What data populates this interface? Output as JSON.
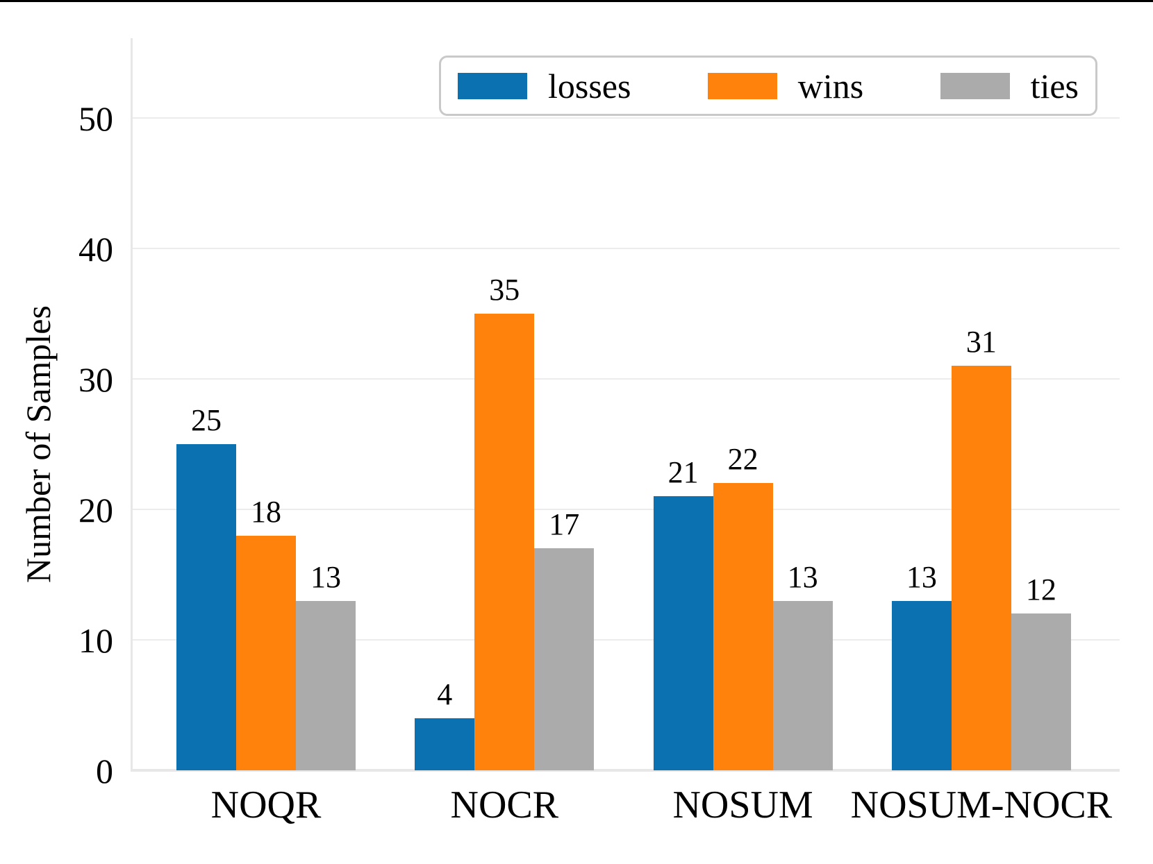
{
  "figure": {
    "background": "#ffffff",
    "top_border_color": "#000000"
  },
  "chart_data": {
    "type": "bar",
    "title": "",
    "xlabel": "",
    "ylabel": "Number of Samples",
    "categories": [
      "NOQR",
      "NOCR",
      "NOSUM",
      "NOSUM-NOCR"
    ],
    "series": [
      {
        "name": "losses",
        "color": "#0c71b0",
        "values": [
          25,
          4,
          21,
          13
        ]
      },
      {
        "name": "wins",
        "color": "#ff820d",
        "values": [
          18,
          35,
          22,
          31
        ]
      },
      {
        "name": "ties",
        "color": "#ababab",
        "values": [
          13,
          17,
          13,
          12
        ]
      }
    ],
    "bar_value_labels": [
      [
        "25",
        "18",
        "13"
      ],
      [
        "4",
        "35",
        "17"
      ],
      [
        "21",
        "22",
        "13"
      ],
      [
        "13",
        "31",
        "12"
      ]
    ],
    "ylim": [
      0,
      56
    ],
    "yticks": [
      "0",
      "10",
      "20",
      "30",
      "40",
      "50"
    ],
    "grid": true,
    "gridline_color": "#ececec",
    "spine_color": "#e7e7e7",
    "legend_position": "top",
    "legend_entries": [
      "losses",
      "wins",
      "ties"
    ]
  }
}
